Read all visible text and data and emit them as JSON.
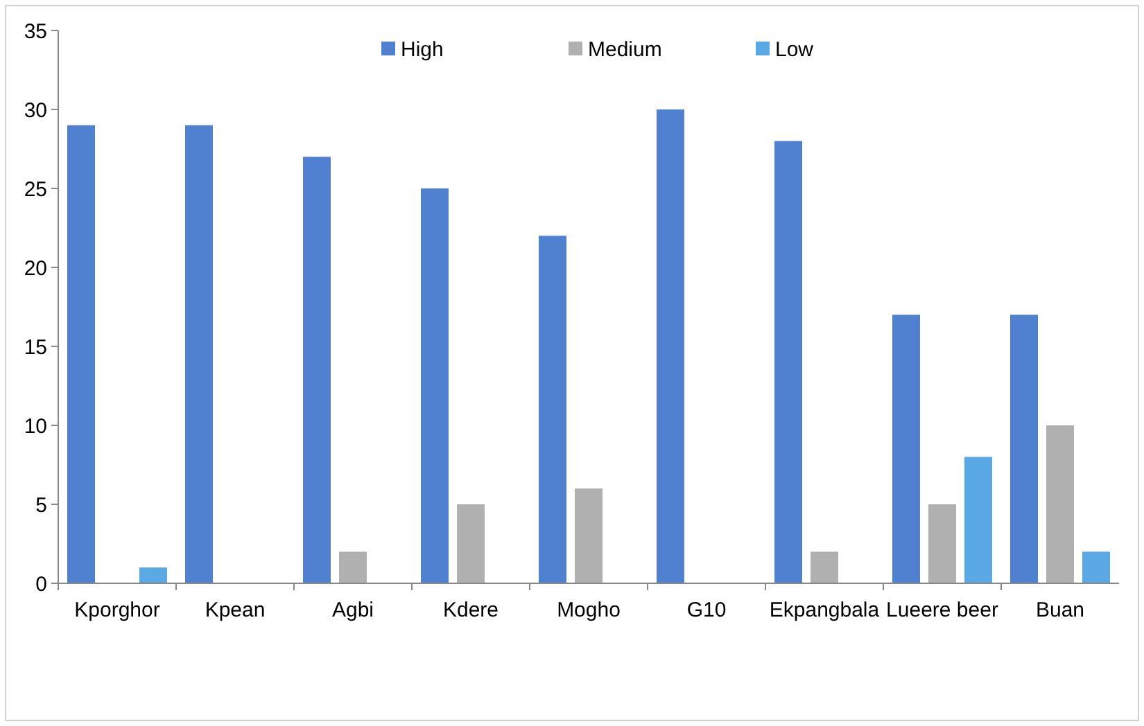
{
  "chart_data": {
    "type": "bar",
    "categories": [
      "Kporghor",
      "Kpean",
      "Agbi",
      "Kdere",
      "Mogho",
      "G10",
      "Ekpangbala",
      "Lueere beer",
      "Buan"
    ],
    "series": [
      {
        "name": "High",
        "color": "#4f81d0",
        "values": [
          29,
          29,
          27,
          25,
          22,
          30,
          28,
          17,
          17
        ]
      },
      {
        "name": "Medium",
        "color": "#b0b0b0",
        "values": [
          0,
          0,
          2,
          5,
          6,
          0,
          2,
          5,
          10
        ]
      },
      {
        "name": "Low",
        "color": "#5aa8e4",
        "values": [
          1,
          0,
          0,
          0,
          0,
          0,
          0,
          8,
          2
        ]
      }
    ],
    "ylim": [
      0,
      35
    ],
    "yticks": [
      0,
      5,
      10,
      15,
      20,
      25,
      30,
      35
    ],
    "grid": false,
    "legend": "top"
  }
}
